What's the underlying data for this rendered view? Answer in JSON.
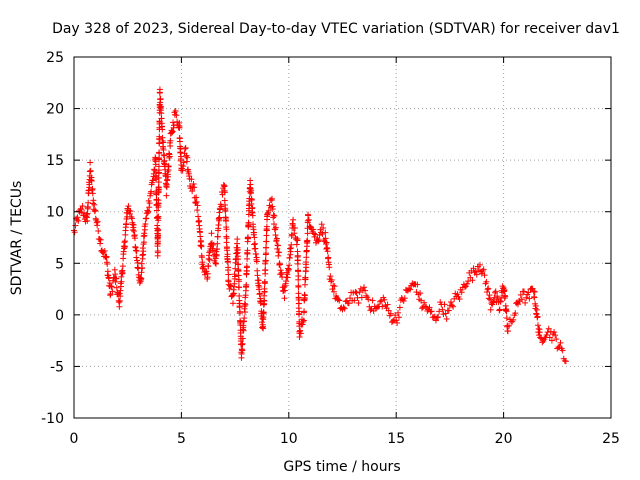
{
  "chart_data": {
    "type": "scatter",
    "title": "Day 328 of 2023, Sidereal Day-to-day VTEC variation (SDTVAR) for receiver dav1",
    "xlabel": "GPS time / hours",
    "ylabel": "SDTVAR / TECUs",
    "xlim": [
      0,
      25
    ],
    "ylim": [
      -10,
      25
    ],
    "xticks": [
      "0",
      "5",
      "10",
      "15",
      "20",
      "25"
    ],
    "yticks": [
      "-10",
      "-5",
      "0",
      "5",
      "10",
      "15",
      "20",
      "25"
    ],
    "grid": true,
    "marker": "+",
    "color": "#ff0000",
    "series": [
      {
        "name": "SDTVAR",
        "trace": [
          [
            0.0,
            8.0
          ],
          [
            0.2,
            9.5
          ],
          [
            0.4,
            10.2
          ],
          [
            0.6,
            9.0
          ],
          [
            0.75,
            14.2
          ],
          [
            0.9,
            11.0
          ],
          [
            1.1,
            8.5
          ],
          [
            1.3,
            6.5
          ],
          [
            1.5,
            5.5
          ],
          [
            1.7,
            2.0
          ],
          [
            1.9,
            4.0
          ],
          [
            2.1,
            1.0
          ],
          [
            2.3,
            5.5
          ],
          [
            2.5,
            10.5
          ],
          [
            2.7,
            9.5
          ],
          [
            2.9,
            6.0
          ],
          [
            3.1,
            3.0
          ],
          [
            3.3,
            8.5
          ],
          [
            3.5,
            11.0
          ],
          [
            3.7,
            13.5
          ],
          [
            3.8,
            15.0
          ],
          [
            3.9,
            6.0
          ],
          [
            4.0,
            21.5
          ],
          [
            4.1,
            18.0
          ],
          [
            4.3,
            12.0
          ],
          [
            4.5,
            17.0
          ],
          [
            4.7,
            19.5
          ],
          [
            4.9,
            18.5
          ],
          [
            5.0,
            14.0
          ],
          [
            5.2,
            16.0
          ],
          [
            5.4,
            13.0
          ],
          [
            5.6,
            12.0
          ],
          [
            5.8,
            9.5
          ],
          [
            6.0,
            4.5
          ],
          [
            6.2,
            3.5
          ],
          [
            6.4,
            7.5
          ],
          [
            6.6,
            5.0
          ],
          [
            6.8,
            10.5
          ],
          [
            7.0,
            12.5
          ],
          [
            7.2,
            3.0
          ],
          [
            7.4,
            1.5
          ],
          [
            7.6,
            7.0
          ],
          [
            7.8,
            -4.0
          ],
          [
            8.0,
            2.0
          ],
          [
            8.2,
            13.0
          ],
          [
            8.4,
            7.0
          ],
          [
            8.6,
            3.0
          ],
          [
            8.8,
            -1.5
          ],
          [
            9.0,
            10.0
          ],
          [
            9.2,
            11.0
          ],
          [
            9.4,
            8.0
          ],
          [
            9.6,
            4.5
          ],
          [
            9.8,
            2.0
          ],
          [
            10.0,
            5.0
          ],
          [
            10.2,
            9.0
          ],
          [
            10.4,
            7.0
          ],
          [
            10.5,
            -2.0
          ],
          [
            10.7,
            0.0
          ],
          [
            10.9,
            9.5
          ],
          [
            11.1,
            8.5
          ],
          [
            11.3,
            7.0
          ],
          [
            11.5,
            8.5
          ],
          [
            11.7,
            7.5
          ],
          [
            11.9,
            4.0
          ],
          [
            12.1,
            2.5
          ],
          [
            12.3,
            1.0
          ],
          [
            12.6,
            0.5
          ],
          [
            12.9,
            2.0
          ],
          [
            13.2,
            1.5
          ],
          [
            13.5,
            2.5
          ],
          [
            13.8,
            1.0
          ],
          [
            14.1,
            0.5
          ],
          [
            14.4,
            1.5
          ],
          [
            14.7,
            0.0
          ],
          [
            15.0,
            -0.5
          ],
          [
            15.3,
            1.5
          ],
          [
            15.6,
            2.5
          ],
          [
            15.9,
            3.0
          ],
          [
            16.2,
            1.0
          ],
          [
            16.5,
            0.5
          ],
          [
            16.8,
            -0.5
          ],
          [
            17.1,
            1.0
          ],
          [
            17.4,
            0.0
          ],
          [
            17.7,
            1.5
          ],
          [
            18.0,
            2.0
          ],
          [
            18.3,
            3.5
          ],
          [
            18.6,
            4.0
          ],
          [
            18.9,
            5.0
          ],
          [
            19.2,
            3.0
          ],
          [
            19.4,
            1.0
          ],
          [
            19.6,
            2.0
          ],
          [
            19.8,
            0.5
          ],
          [
            20.0,
            3.0
          ],
          [
            20.2,
            -1.5
          ],
          [
            20.5,
            0.0
          ],
          [
            20.8,
            2.0
          ],
          [
            21.1,
            1.5
          ],
          [
            21.4,
            2.5
          ],
          [
            21.7,
            -2.5
          ],
          [
            22.0,
            -1.5
          ],
          [
            22.3,
            -2.0
          ],
          [
            22.6,
            -3.0
          ],
          [
            22.9,
            -4.5
          ]
        ]
      }
    ]
  }
}
